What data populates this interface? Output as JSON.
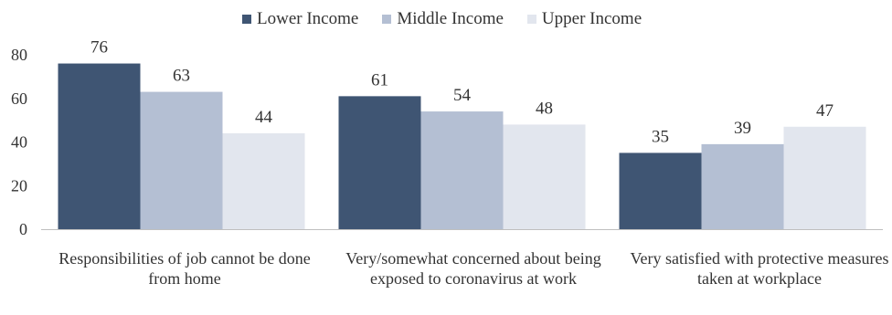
{
  "chart_data": {
    "type": "bar",
    "categories": [
      "Responsibilities of job cannot be done from home",
      "Very/somewhat concerned about being exposed to coronavirus at work",
      "Very satisfied with protective measures taken at workplace"
    ],
    "series": [
      {
        "name": "Lower Income",
        "values": [
          76,
          61,
          35
        ],
        "color": "#3f5573"
      },
      {
        "name": "Middle Income",
        "values": [
          63,
          54,
          39
        ],
        "color": "#b4bfd3"
      },
      {
        "name": "Upper Income",
        "values": [
          44,
          48,
          47
        ],
        "color": "#e2e6ee"
      }
    ],
    "title": "",
    "xlabel": "",
    "ylabel": "",
    "ylim": [
      0,
      80
    ],
    "yticks": [
      "0",
      "20",
      "40",
      "60",
      "80"
    ],
    "grid": false,
    "legend": "top-center"
  }
}
